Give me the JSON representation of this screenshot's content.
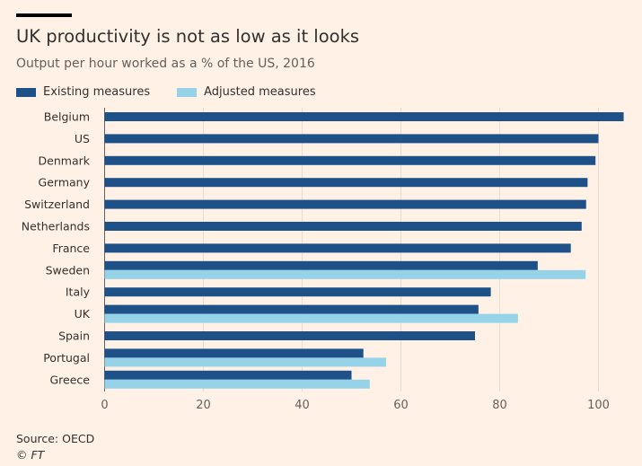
{
  "title": "UK productivity is not as low as it looks",
  "subtitle": "Output per hour worked as a % of the US, 2016",
  "source": "Source: OECD",
  "credit": "© FT",
  "colors": {
    "existing": "#1f5189",
    "adjusted": "#96d2e8",
    "background": "#fff1e5",
    "grid": "#e9ddd3"
  },
  "chart_data": {
    "type": "bar",
    "orientation": "horizontal",
    "categories": [
      "Belgium",
      "US",
      "Denmark",
      "Germany",
      "Switzerland",
      "Netherlands",
      "France",
      "Sweden",
      "Italy",
      "UK",
      "Spain",
      "Portugal",
      "Greece"
    ],
    "series": [
      {
        "name": "Existing measures",
        "values": [
          105.1,
          100,
          99.4,
          97.8,
          97.5,
          96.6,
          94.4,
          87.7,
          78.2,
          75.7,
          75,
          52.4,
          50
        ]
      },
      {
        "name": "Adjusted measures",
        "values": [
          null,
          null,
          null,
          null,
          null,
          null,
          null,
          97.4,
          null,
          83.7,
          null,
          57,
          53.7
        ]
      }
    ],
    "xlim": [
      0,
      106
    ],
    "xticks": [
      0,
      20,
      40,
      60,
      80,
      100
    ],
    "grid": true,
    "legend": "top-left"
  }
}
